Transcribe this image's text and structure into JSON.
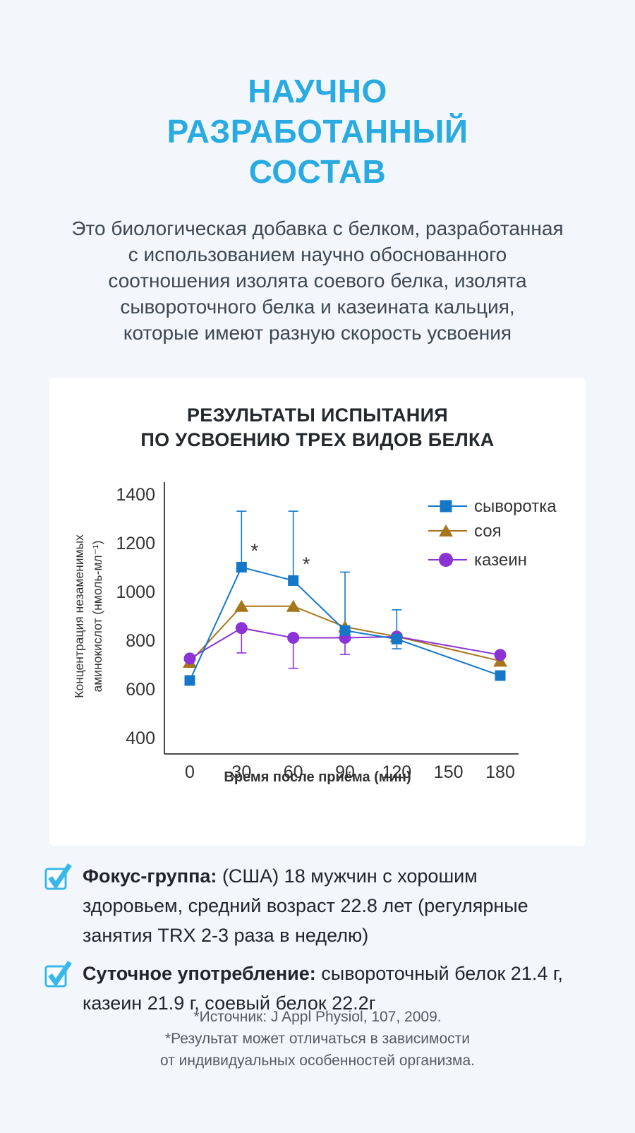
{
  "colors": {
    "page_bg": "#f3f6fa",
    "card_bg": "#ffffff",
    "title_blue": "#29abe2",
    "body_text": "#3c4852",
    "heading_text": "#24292e",
    "axis_text": "#333333",
    "checkbox_cyan": "#38b8ea",
    "footnote_gray": "#555b61",
    "whey_blue": "#1477c8",
    "soy_brown": "#a6761d",
    "casein_purple": "#8c33d6"
  },
  "header": {
    "title_lines": [
      "НАУЧНО",
      "РАЗРАБОТАННЫЙ",
      "СОСТАВ"
    ]
  },
  "intro": {
    "lines": [
      "Это биологическая добавка с белком, разработанная",
      "с использованием научно обоснованного",
      "соотношения изолята соевого белка, изолята",
      "сывороточного белка и казеината кальция,",
      "которые имеют разную скорость усвоения"
    ]
  },
  "chart_card": {
    "title_lines": [
      "РЕЗУЛЬТАТЫ ИСПЫТАНИЯ",
      "ПО УСВОЕНИЮ ТРЕХ ВИДОВ БЕЛКА"
    ]
  },
  "chart_data": {
    "type": "line",
    "title": "РЕЗУЛЬТАТЫ ИСПЫТАНИЯ ПО УСВОЕНИЮ ТРЕХ ВИДОВ БЕЛКА",
    "xlabel": "Время после приёма (мин)",
    "ylabel": "Концентрация незаменимых аминокислот (нмоль-мл⁻¹)",
    "ylabel_lines": [
      "Концентрация незаменимых",
      "аминокислот (нмоль-мл⁻¹)"
    ],
    "x": [
      0,
      30,
      60,
      90,
      120,
      180
    ],
    "x_ticks": [
      0,
      30,
      60,
      90,
      120,
      150,
      180
    ],
    "y_ticks": [
      400,
      600,
      800,
      1000,
      1200,
      1400
    ],
    "xlim": [
      0,
      180
    ],
    "ylim": [
      400,
      1400
    ],
    "grid": false,
    "legend_position": "top-right",
    "series": [
      {
        "name": "сыворотка",
        "marker": "square",
        "color": "#1477c8",
        "values": [
          635,
          1100,
          1045,
          840,
          805,
          655
        ],
        "error_bars": [
          {
            "t": 30,
            "hi": 1330
          },
          {
            "t": 60,
            "hi": 1330
          },
          {
            "t": 90,
            "hi": 1080
          },
          {
            "t": 120,
            "hi": 925,
            "lo": 765
          }
        ],
        "annotations": [
          {
            "t": 30,
            "text": "*"
          },
          {
            "t": 60,
            "text": "*"
          }
        ]
      },
      {
        "name": "соя",
        "marker": "triangle",
        "color": "#a6761d",
        "values": [
          710,
          940,
          940,
          855,
          815,
          715
        ],
        "error_bars": [],
        "annotations": []
      },
      {
        "name": "казеин",
        "marker": "circle",
        "color": "#8c33d6",
        "values": [
          725,
          850,
          810,
          810,
          815,
          740
        ],
        "error_bars": [
          {
            "t": 30,
            "lo": 748
          },
          {
            "t": 60,
            "lo": 685
          },
          {
            "t": 90,
            "lo": 742
          }
        ],
        "annotations": []
      }
    ]
  },
  "bullets": [
    {
      "label": "Фокус-группа:",
      "text": " (США) 18 мужчин с хорошим здоровьем, средний возраст 22.8 лет (регулярные занятия TRX 2-3 раза в неделю)"
    },
    {
      "label": "Суточное употребление:",
      "text": " сывороточный белок 21.4 г, казеин 21.9 г, соевый белок 22.2г"
    }
  ],
  "footnote": {
    "lines": [
      "*Источник: J Appl Physiol, 107, 2009.",
      "*Результат может отличаться в зависимости",
      "от индивидуальных особенностей организма."
    ]
  }
}
